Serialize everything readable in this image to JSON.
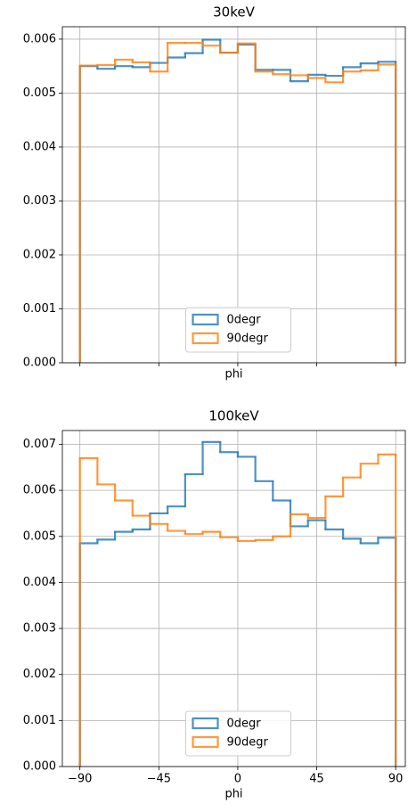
{
  "chart_data": [
    {
      "type": "histogram",
      "title": "30keV",
      "xlabel": "phi",
      "bins": [
        -90,
        -80,
        -70,
        -60,
        -50,
        -40,
        -30,
        -20,
        -10,
        0,
        10,
        20,
        30,
        40,
        50,
        60,
        70,
        80,
        90
      ],
      "series": [
        {
          "name": "0degr",
          "color": "#1f77b4",
          "values": [
            0.0055,
            0.00545,
            0.0055,
            0.00548,
            0.00556,
            0.00566,
            0.00574,
            0.00599,
            0.00575,
            0.0059,
            0.00543,
            0.00543,
            0.00522,
            0.00534,
            0.00532,
            0.00548,
            0.00555,
            0.00558
          ]
        },
        {
          "name": "90degr",
          "color": "#ff7f0e",
          "values": [
            0.00551,
            0.00552,
            0.00562,
            0.00557,
            0.0054,
            0.00593,
            0.00593,
            0.00588,
            0.00575,
            0.00592,
            0.0054,
            0.00535,
            0.00533,
            0.00528,
            0.0052,
            0.0054,
            0.00542,
            0.00553
          ]
        }
      ],
      "xlim": [
        -100,
        95.5
      ],
      "ylim": [
        0,
        0.00623
      ],
      "xticks": [
        -90,
        -45,
        0,
        45,
        90
      ],
      "yticks": [
        {
          "value": 0,
          "label": "0.000"
        },
        {
          "value": 0.001,
          "label": "0.001"
        },
        {
          "value": 0.002,
          "label": "0.002"
        },
        {
          "value": 0.003,
          "label": "0.003"
        },
        {
          "value": 0.004,
          "label": "0.004"
        },
        {
          "value": 0.005,
          "label": "0.005"
        },
        {
          "value": 0.006,
          "label": "0.006"
        }
      ],
      "grid": true,
      "legend": "lower center"
    },
    {
      "type": "histogram",
      "title": "100keV",
      "xlabel": "phi",
      "bins": [
        -90,
        -80,
        -70,
        -60,
        -50,
        -40,
        -30,
        -20,
        -10,
        0,
        10,
        20,
        30,
        40,
        50,
        60,
        70,
        80,
        90
      ],
      "series": [
        {
          "name": "0degr",
          "color": "#1f77b4",
          "values": [
            0.00485,
            0.00493,
            0.0051,
            0.00515,
            0.0055,
            0.00565,
            0.00635,
            0.00705,
            0.00683,
            0.00673,
            0.0062,
            0.00578,
            0.00522,
            0.00535,
            0.00515,
            0.00495,
            0.00485,
            0.00497
          ]
        },
        {
          "name": "90degr",
          "color": "#ff7f0e",
          "values": [
            0.0067,
            0.00613,
            0.00578,
            0.00545,
            0.00527,
            0.00512,
            0.00505,
            0.0051,
            0.00498,
            0.0049,
            0.00492,
            0.005,
            0.00548,
            0.0054,
            0.00587,
            0.00628,
            0.00658,
            0.00678
          ]
        }
      ],
      "xlim": [
        -100,
        95.5
      ],
      "ylim": [
        0,
        0.0073
      ],
      "xticks": [
        {
          "value": -90,
          "label": "−90"
        },
        {
          "value": -45,
          "label": "−45"
        },
        0,
        45,
        90
      ],
      "yticks": [
        {
          "value": 0,
          "label": "0.000"
        },
        {
          "value": 0.001,
          "label": "0.001"
        },
        {
          "value": 0.002,
          "label": "0.002"
        },
        {
          "value": 0.003,
          "label": "0.003"
        },
        {
          "value": 0.004,
          "label": "0.004"
        },
        {
          "value": 0.005,
          "label": "0.005"
        },
        {
          "value": 0.006,
          "label": "0.006"
        },
        {
          "value": 0.007,
          "label": "0.007"
        }
      ],
      "grid": true,
      "legend": "lower center"
    }
  ]
}
